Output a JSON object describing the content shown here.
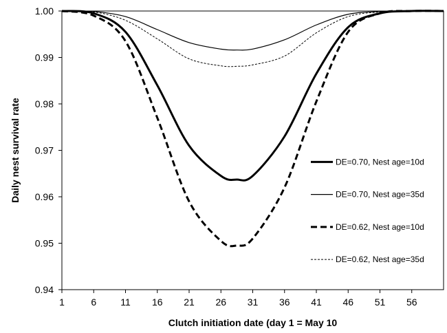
{
  "chart_data": {
    "type": "line",
    "title": "",
    "xlabel": "Clutch initiation date (day 1 = May 10",
    "ylabel": "Daily nest survival rate",
    "xlim": [
      1,
      61
    ],
    "ylim": [
      0.94,
      1.0
    ],
    "x_ticks": [
      "1",
      "6",
      "11",
      "16",
      "21",
      "26",
      "31",
      "36",
      "41",
      "46",
      "51",
      "56"
    ],
    "y_ticks": [
      "0.94",
      "0.95",
      "0.96",
      "0.97",
      "0.98",
      "0.99",
      "1.00"
    ],
    "grid": false,
    "legend_position": "right",
    "x": [
      1,
      6,
      11,
      16,
      21,
      26,
      28.5,
      31,
      36,
      41,
      46,
      51,
      56,
      61
    ],
    "series": [
      {
        "name": "DE=0.70, Nest age=10d",
        "style": "solid-thick",
        "values": [
          1.0,
          0.9995,
          0.9955,
          0.984,
          0.971,
          0.9645,
          0.9637,
          0.9645,
          0.973,
          0.9865,
          0.9965,
          0.9995,
          1.0,
          1.0
        ]
      },
      {
        "name": "DE=0.70, Nest age=35d",
        "style": "solid-thin",
        "values": [
          1.0,
          0.9999,
          0.9988,
          0.996,
          0.9932,
          0.9918,
          0.9916,
          0.9918,
          0.9938,
          0.997,
          0.9993,
          0.9999,
          1.0,
          1.0
        ]
      },
      {
        "name": "DE=0.62, Nest age=10d",
        "style": "dashed-thick",
        "values": [
          1.0,
          0.999,
          0.9935,
          0.977,
          0.959,
          0.9505,
          0.9495,
          0.951,
          0.962,
          0.9805,
          0.9955,
          0.9995,
          1.0,
          1.0
        ]
      },
      {
        "name": "DE=0.62, Nest age=35d",
        "style": "dashed-thin",
        "values": [
          1.0,
          0.9998,
          0.998,
          0.994,
          0.9897,
          0.9882,
          0.9881,
          0.9884,
          0.9903,
          0.9953,
          0.9988,
          0.9998,
          1.0,
          1.0
        ]
      }
    ],
    "colors": {
      "line": "#000000",
      "background": "#ffffff"
    }
  }
}
